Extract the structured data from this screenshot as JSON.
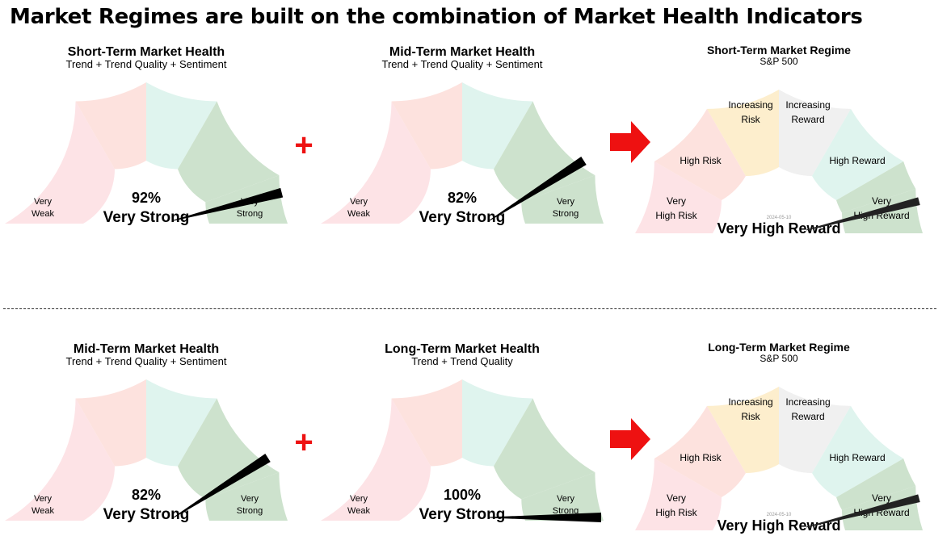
{
  "title": "Market Regimes are built on the combination of Market Health Indicators",
  "colors": {
    "needle": "#000000",
    "regime_needle": "#222222",
    "operator": "#ee1111",
    "health_zones": [
      "#fde3e6",
      "#fde2de",
      "#dff4ee",
      "#cde2cd",
      "#cde2cd"
    ],
    "regime_zones": [
      "#fde3e6",
      "#fde2de",
      "#fdeecd",
      "#f0f0f0",
      "#dff4ee",
      "#cde2cd",
      "#cde2cd"
    ]
  },
  "operator_symbol": "+",
  "arrow_icon": "right-arrow-icon",
  "rows": [
    {
      "health": [
        {
          "title": "Short-Term Market Health",
          "subtitle": "Trend + Trend Quality + Sentiment",
          "value": "92%",
          "status": "Very Strong",
          "level": 0.92,
          "left_label": [
            "Very",
            "Weak"
          ],
          "right_label": [
            "Very",
            "Strong"
          ]
        },
        {
          "title": "Mid-Term Market Health",
          "subtitle": "Trend + Trend Quality + Sentiment",
          "value": "82%",
          "status": "Very Strong",
          "level": 0.82,
          "left_label": [
            "Very",
            "Weak"
          ],
          "right_label": [
            "Very",
            "Strong"
          ]
        }
      ],
      "regime": {
        "title": "Short-Term Market Regime",
        "subtitle": "S&P 500",
        "date": "2024-05-10",
        "status": "Very High Reward",
        "level": 0.92,
        "zones": [
          [
            "Very",
            "High Risk"
          ],
          [
            "High Risk"
          ],
          [
            "Increasing",
            "Risk"
          ],
          [
            "Increasing",
            "Reward"
          ],
          [
            "High Reward"
          ],
          [],
          [
            "Very",
            "High Reward"
          ]
        ]
      }
    },
    {
      "health": [
        {
          "title": "Mid-Term Market Health",
          "subtitle": "Trend + Trend Quality + Sentiment",
          "value": "82%",
          "status": "Very Strong",
          "level": 0.82,
          "left_label": [
            "Very",
            "Weak"
          ],
          "right_label": [
            "Very",
            "Strong"
          ]
        },
        {
          "title": "Long-Term Market Health",
          "subtitle": "Trend + Trend Quality",
          "value": "100%",
          "status": "Very Strong",
          "level": 1.0,
          "left_label": [
            "Very",
            "Weak"
          ],
          "right_label": [
            "Very",
            "Strong"
          ]
        }
      ],
      "regime": {
        "title": "Long-Term Market Regime",
        "subtitle": "S&P 500",
        "date": "2024-05-10",
        "status": "Very High Reward",
        "level": 0.92,
        "zones": [
          [
            "Very",
            "High Risk"
          ],
          [
            "High Risk"
          ],
          [
            "Increasing",
            "Risk"
          ],
          [
            "Increasing",
            "Reward"
          ],
          [
            "High Reward"
          ],
          [],
          [
            "Very",
            "High Reward"
          ]
        ]
      }
    }
  ]
}
